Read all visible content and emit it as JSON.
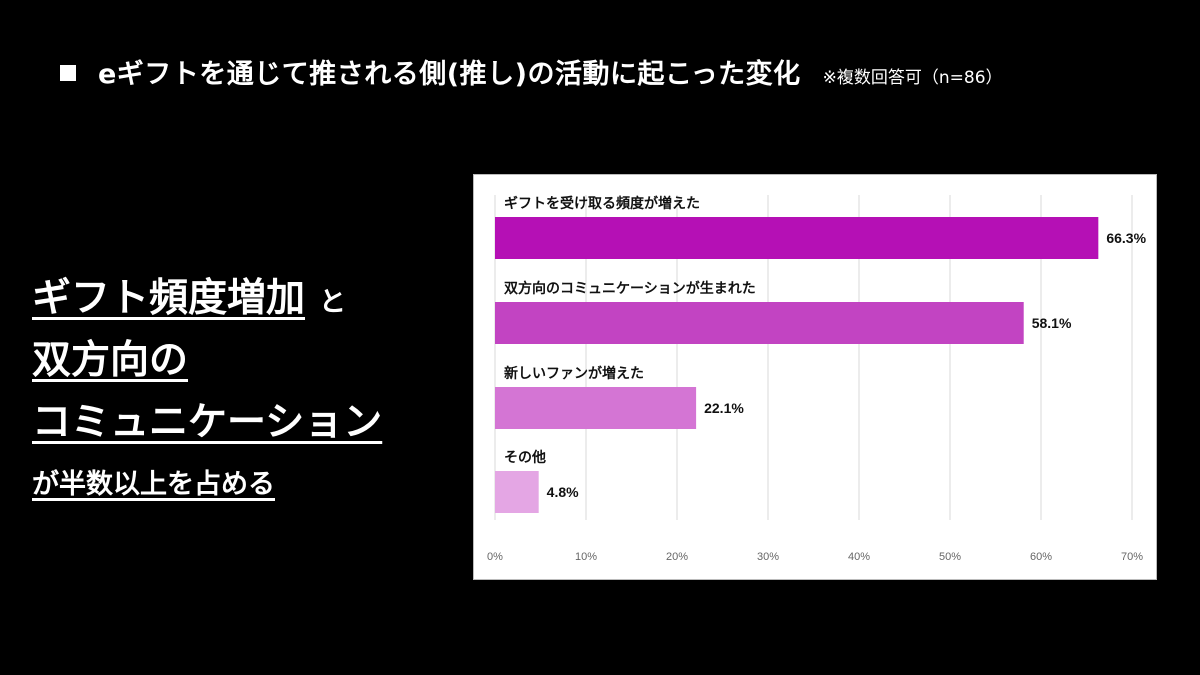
{
  "header": {
    "title": "eギフトを通じて推される側(推し)の活動に起こった変化",
    "note": "※複数回答可（n=86）"
  },
  "lead": {
    "line1": "ギフト頻度増加",
    "conj": "と",
    "line2": "双方向の",
    "line3": "コミュニケーション",
    "line4": "が半数以上を占める"
  },
  "colors": {
    "background": "#000000",
    "panel": "#ffffff",
    "grid": "#d9d9d9"
  },
  "chart_data": {
    "type": "bar",
    "orientation": "horizontal",
    "categories": [
      "ギフトを受け取る頻度が増えた",
      "双方向のコミュニケーションが生まれた",
      "新しいファンが増えた",
      "その他"
    ],
    "values": [
      66.3,
      58.1,
      22.1,
      4.8
    ],
    "value_labels": [
      "66.3%",
      "58.1%",
      "22.1%",
      "4.8%"
    ],
    "bar_colors": [
      "#b510b5",
      "#c244c2",
      "#d475d4",
      "#e4a6e4"
    ],
    "xlim": [
      0,
      70
    ],
    "x_ticks": [
      "0%",
      "10%",
      "20%",
      "30%",
      "40%",
      "50%",
      "60%",
      "70%"
    ],
    "grid": true
  }
}
